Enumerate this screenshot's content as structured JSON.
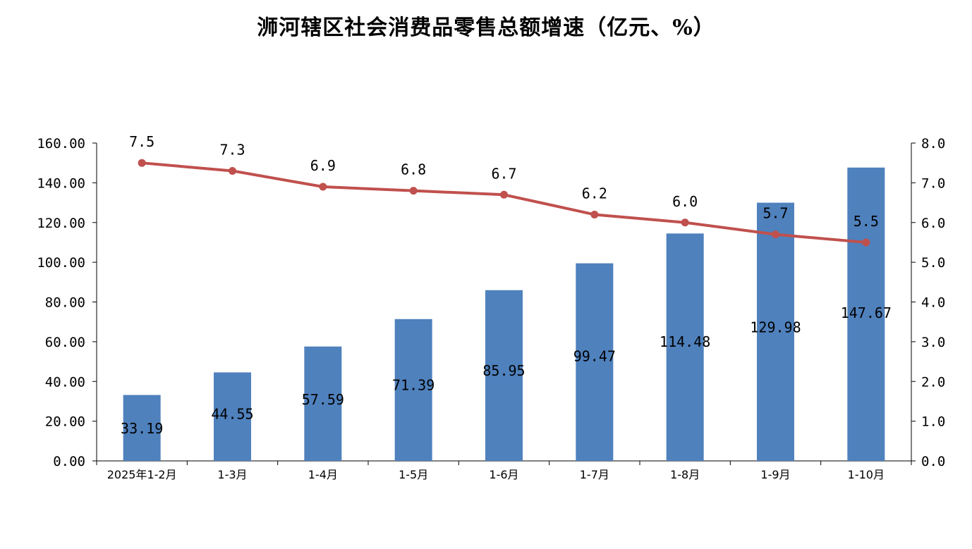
{
  "chart_data": {
    "type": "bar",
    "title": "浉河辖区社会消费品零售总额增速（亿元、%）",
    "categories": [
      "2025年1-2月",
      "1-3月",
      "1-4月",
      "1-5月",
      "1-6月",
      "1-7月",
      "1-8月",
      "1-9月",
      "1-10月"
    ],
    "series": [
      {
        "type": "bar",
        "axis": "left",
        "color": "#4F81BD",
        "values": [
          33.19,
          44.55,
          57.59,
          71.39,
          85.95,
          99.47,
          114.48,
          129.98,
          147.67
        ],
        "labels": [
          "33.19",
          "44.55",
          "57.59",
          "71.39",
          "85.95",
          "99.47",
          "114.48",
          "129.98",
          "147.67"
        ]
      },
      {
        "type": "line",
        "axis": "right",
        "color": "#C0504D",
        "values": [
          7.5,
          7.3,
          6.9,
          6.8,
          6.7,
          6.2,
          6.0,
          5.7,
          5.5
        ],
        "labels": [
          "7.5",
          "7.3",
          "6.9",
          "6.8",
          "6.7",
          "6.2",
          "6.0",
          "5.7",
          "5.5"
        ]
      }
    ],
    "ylim": [
      0,
      160
    ],
    "y2lim": [
      0,
      8
    ],
    "yticks": [
      "0.00",
      "20.00",
      "40.00",
      "60.00",
      "80.00",
      "100.00",
      "120.00",
      "140.00",
      "160.00"
    ],
    "y2ticks": [
      "0.0",
      "1.0",
      "2.0",
      "3.0",
      "4.0",
      "5.0",
      "6.0",
      "7.0",
      "8.0"
    ],
    "grid": false,
    "legend": "none"
  }
}
